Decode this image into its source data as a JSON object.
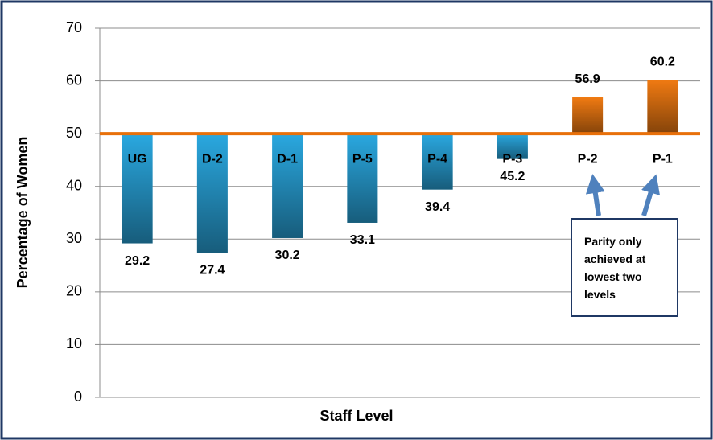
{
  "chart_data": {
    "type": "bar",
    "x_label": "Staff Level",
    "y_label": "Percentage of Women",
    "categories": [
      "UG",
      "D-2",
      "D-1",
      "P-5",
      "P-4",
      "P-3",
      "P-2",
      "P-1"
    ],
    "values": [
      29.2,
      27.4,
      30.2,
      33.1,
      39.4,
      45.2,
      56.9,
      60.2
    ],
    "reference_line": 50,
    "color_below": "#2aa8e0",
    "color_above": "#f07a12",
    "reference_color": "#e8700a",
    "ylim": [
      0,
      70
    ],
    "yticks": [
      0,
      10,
      20,
      30,
      40,
      50,
      60,
      70
    ],
    "grid": true,
    "annotation": "Parity only achieved at lowest two levels"
  }
}
